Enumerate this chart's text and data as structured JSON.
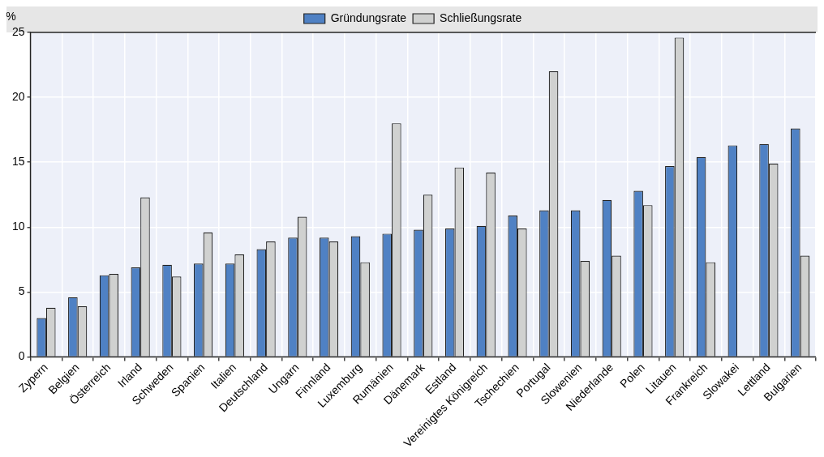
{
  "chart_data": {
    "type": "bar",
    "ylabel": "%",
    "categories": [
      "Zypern",
      "Belgien",
      "Österreich",
      "Irland",
      "Schweden",
      "Spanien",
      "Italien",
      "Deutschland",
      "Ungarn",
      "Finnland",
      "Luxemburg",
      "Rumänien",
      "Dänemark",
      "Estland",
      "Vereinigtes Königreich",
      "Tschechien",
      "Portugal",
      "Slowenien",
      "Niederlande",
      "Polen",
      "Litauen",
      "Frankreich",
      "Slowakei",
      "Lettland",
      "Bulgarien"
    ],
    "series": [
      {
        "name": "Gründungsrate",
        "color": "#4f81c4",
        "values": [
          3.0,
          4.6,
          6.3,
          6.9,
          7.1,
          7.2,
          7.2,
          8.3,
          9.2,
          9.2,
          9.3,
          9.5,
          9.8,
          9.9,
          10.1,
          10.9,
          11.3,
          11.3,
          12.1,
          12.8,
          14.7,
          15.4,
          16.3,
          16.4,
          17.6
        ]
      },
      {
        "name": "Schließungsrate",
        "color": "#d0d1d0",
        "values": [
          3.8,
          3.9,
          6.4,
          12.3,
          6.2,
          9.6,
          7.9,
          8.9,
          10.8,
          8.9,
          7.3,
          18.0,
          12.5,
          14.6,
          14.2,
          9.9,
          22.0,
          7.4,
          7.8,
          11.7,
          24.6,
          7.3,
          null,
          14.9,
          7.8
        ]
      }
    ],
    "ylim": [
      0,
      25
    ],
    "yticks": [
      0,
      5,
      10,
      15,
      20,
      25
    ],
    "grid": true,
    "legend": "top"
  }
}
